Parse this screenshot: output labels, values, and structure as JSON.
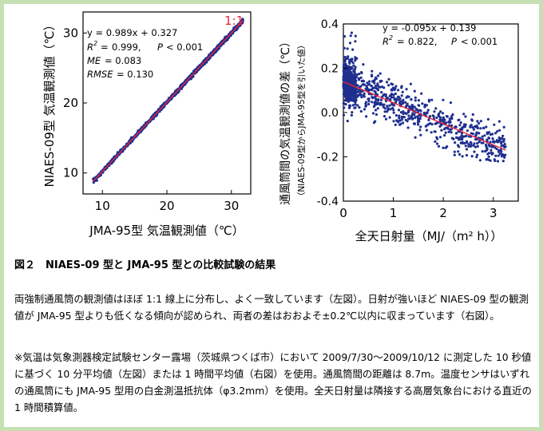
{
  "figure": {
    "caption": "図２　NIAES-09 型と JMA-95 型との比較試験の結果",
    "paragraph_main": "両強制通風筒の観測値はほぼ 1:1 線上に分布し、よく一致しています（左図）。日射が強いほど NIAES-09 型の観測値が JMA-95 型よりも低くなる傾向が認められ、両者の差はおおよそ±0.2℃以内に収まっています（右図）。",
    "paragraph_note": "※気温は気象測器検定試験センター露場（茨城県つくば市）において 2009/7/30～2009/10/12 に測定した 10 秒値に基づく 10 分平均値（左図）または 1 時間平均値（右図）を使用。通風筒間の距離は 8.7m。温度センサはいずれの通風筒にも JMA-95 型用の白金測温抵抗体（φ3.2mm）を使用。全天日射量は隣接する高層気象台における直近の 1 時間積算値。"
  },
  "chart_data": [
    {
      "type": "scatter",
      "xlabel": "JMA-95型 気温観測値（℃）",
      "ylabel": "NIAES-09型 気温観測値（℃）",
      "xlim": [
        7,
        33
      ],
      "ylim": [
        7,
        33
      ],
      "xticks": [
        "10",
        "20",
        "30"
      ],
      "yticks": [
        "10",
        "20",
        "30"
      ],
      "reference_line_label": "1:1",
      "stats": {
        "equation": "y = 0.989x + 0.327",
        "r2": "0.999,",
        "p": "< 0.001",
        "me": "= 0.083",
        "rmse": "= 0.130"
      },
      "regression": {
        "slope": 0.989,
        "intercept": 0.327
      },
      "x_range": [
        8.5,
        31.8
      ],
      "colors": {
        "points": "#1f2f8f",
        "line": "#e8253a",
        "label": "#e8253a"
      }
    },
    {
      "type": "scatter",
      "xlabel": "全天日射量（MJ/（m² h））",
      "ylabel": "通風筒間の気温観測値の差（℃）",
      "ylabel_sub": "（NIAES-09型からJMA-95型を引いた値）",
      "xlim": [
        0,
        3.5
      ],
      "ylim": [
        -0.4,
        0.4
      ],
      "xticks": [
        "0",
        "1",
        "2",
        "3"
      ],
      "yticks": [
        "0.4",
        "0.2",
        "0.0",
        "-0.2",
        "-0.4"
      ],
      "stats": {
        "equation": "y = -0.095x + 0.139",
        "r2": "0.822,",
        "p": "< 0.001"
      },
      "regression": {
        "slope": -0.095,
        "intercept": 0.139
      },
      "x_range": [
        0,
        3.25
      ],
      "colors": {
        "points": "#1f2f8f",
        "line": "#e8253a"
      }
    }
  ]
}
